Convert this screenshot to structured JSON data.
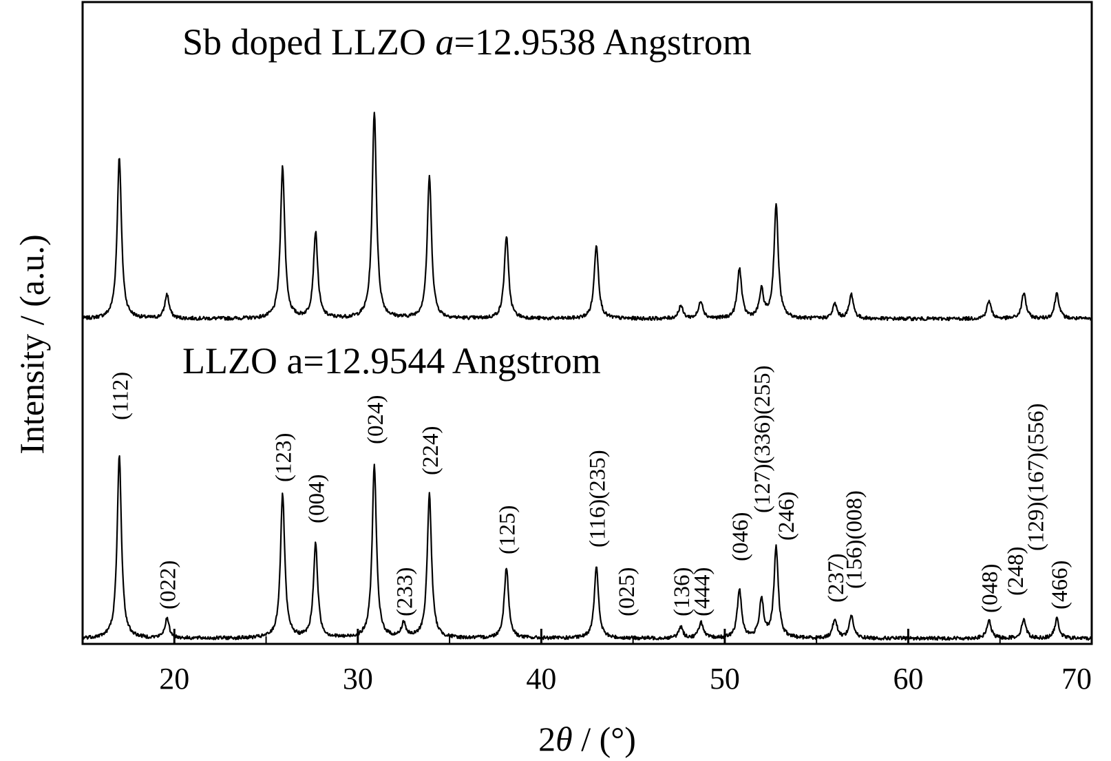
{
  "chart_data": {
    "type": "line",
    "xlabel": "2θ / (°)",
    "xlabel_parts": {
      "two": "2",
      "theta": "θ",
      "unit": " / (°)"
    },
    "ylabel": "Intensity / (a.u.)",
    "xlim": [
      15,
      70
    ],
    "x_ticks": [
      20,
      30,
      40,
      50,
      60,
      70
    ],
    "grid": false,
    "legend": "none",
    "series": [
      {
        "name": "Sb doped LLZO a=12.9538 Angstrom",
        "label_parts": {
          "prefix": "Sb doped LLZO ",
          "italic": "a",
          "suffix": "=12.9538 Angstrom"
        },
        "peaks": [
          {
            "x": 17.0,
            "y": 100
          },
          {
            "x": 19.6,
            "y": 15
          },
          {
            "x": 25.9,
            "y": 94
          },
          {
            "x": 27.7,
            "y": 53
          },
          {
            "x": 30.9,
            "y": 128
          },
          {
            "x": 33.9,
            "y": 88
          },
          {
            "x": 38.1,
            "y": 51
          },
          {
            "x": 43.0,
            "y": 46
          },
          {
            "x": 47.6,
            "y": 8
          },
          {
            "x": 48.7,
            "y": 11
          },
          {
            "x": 50.8,
            "y": 31
          },
          {
            "x": 52.0,
            "y": 17
          },
          {
            "x": 52.8,
            "y": 70
          },
          {
            "x": 56.0,
            "y": 9
          },
          {
            "x": 56.9,
            "y": 15
          },
          {
            "x": 64.4,
            "y": 11
          },
          {
            "x": 66.3,
            "y": 16
          },
          {
            "x": 68.1,
            "y": 16
          }
        ]
      },
      {
        "name": "LLZO a=12.9544 Angstrom",
        "label_parts": {
          "prefix": "LLZO ",
          "italic": "",
          "suffix": "a=12.9544 Angstrom"
        },
        "peaks": [
          {
            "x": 17.0,
            "y": 113
          },
          {
            "x": 19.6,
            "y": 12
          },
          {
            "x": 25.9,
            "y": 89
          },
          {
            "x": 27.7,
            "y": 58
          },
          {
            "x": 30.9,
            "y": 107
          },
          {
            "x": 32.5,
            "y": 9
          },
          {
            "x": 33.9,
            "y": 89
          },
          {
            "x": 38.1,
            "y": 44
          },
          {
            "x": 43.0,
            "y": 44
          },
          {
            "x": 47.6,
            "y": 7
          },
          {
            "x": 48.7,
            "y": 10
          },
          {
            "x": 50.8,
            "y": 30
          },
          {
            "x": 52.0,
            "y": 24
          },
          {
            "x": 52.8,
            "y": 56
          },
          {
            "x": 56.0,
            "y": 12
          },
          {
            "x": 56.9,
            "y": 14
          },
          {
            "x": 64.4,
            "y": 11
          },
          {
            "x": 66.3,
            "y": 12
          },
          {
            "x": 68.1,
            "y": 12
          }
        ]
      }
    ],
    "annotations": [
      {
        "text": "(112)",
        "x": 17.0
      },
      {
        "text": "(022)",
        "x": 19.6
      },
      {
        "text": "(123)",
        "x": 25.9
      },
      {
        "text": "(004)",
        "x": 27.7
      },
      {
        "text": "(024)",
        "x": 30.9
      },
      {
        "text": "(233)",
        "x": 32.5
      },
      {
        "text": "(224)",
        "x": 33.9
      },
      {
        "text": "(125)",
        "x": 38.1
      },
      {
        "text": "(116)(235)",
        "x": 43.0
      },
      {
        "text": "(025)",
        "x": 44.6
      },
      {
        "text": "(136)",
        "x": 47.6
      },
      {
        "text": "(444)",
        "x": 48.7
      },
      {
        "text": "(046)",
        "x": 50.8
      },
      {
        "text": "(127)(336)(255)",
        "x": 52.0
      },
      {
        "text": "(246)",
        "x": 53.3
      },
      {
        "text": "(237)",
        "x": 56.0
      },
      {
        "text": "(156)(008)",
        "x": 57.0
      },
      {
        "text": "(048)",
        "x": 64.4
      },
      {
        "text": "(248)",
        "x": 65.8
      },
      {
        "text": "(129)(167)(556)",
        "x": 66.9
      },
      {
        "text": "(466)",
        "x": 68.2
      }
    ]
  }
}
